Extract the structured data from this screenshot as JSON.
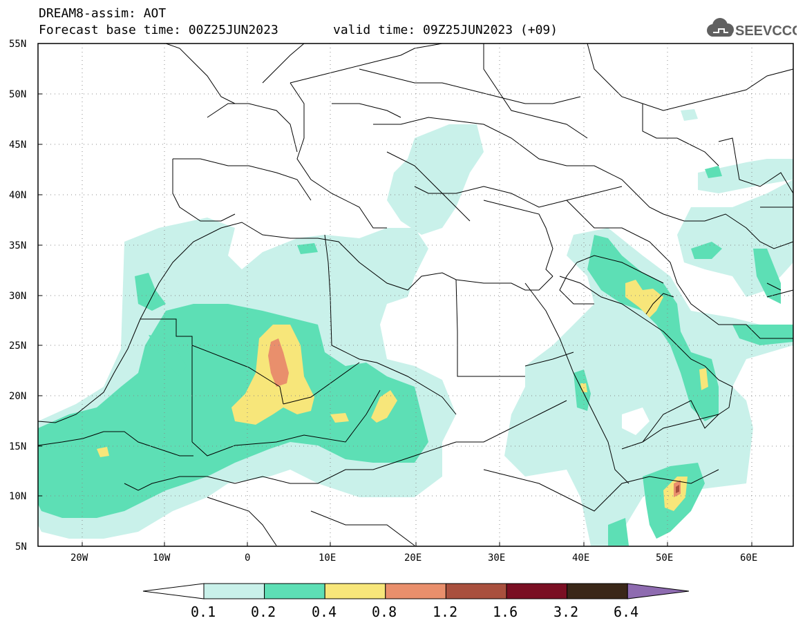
{
  "header": {
    "title": "DREAM8-assim: AOT",
    "base_time": "Forecast base time: 00Z25JUN2023",
    "valid_time": "valid time: 09Z25JUN2023 (+09)"
  },
  "logo": {
    "text": "SEEVCCC",
    "icon": "cloud-icon"
  },
  "map": {
    "region": "North Africa, Europe and Middle East",
    "lat_labels": [
      "55N",
      "50N",
      "45N",
      "40N",
      "35N",
      "30N",
      "25N",
      "20N",
      "15N",
      "10N",
      "5N"
    ],
    "lon_labels": [
      "20W",
      "10W",
      "0",
      "10E",
      "20E",
      "30E",
      "40E",
      "50E",
      "60E"
    ],
    "grid": true
  },
  "colorbar": {
    "labels": [
      "0.1",
      "0.2",
      "0.4",
      "0.8",
      "1.2",
      "1.6",
      "3.2",
      "6.4"
    ],
    "colors": [
      "#ffffff",
      "#c9f1ea",
      "#5ddfb5",
      "#f7e67a",
      "#e98f6c",
      "#a9503e",
      "#7a0f23",
      "#3a2718",
      "#8e6bb0"
    ]
  }
}
